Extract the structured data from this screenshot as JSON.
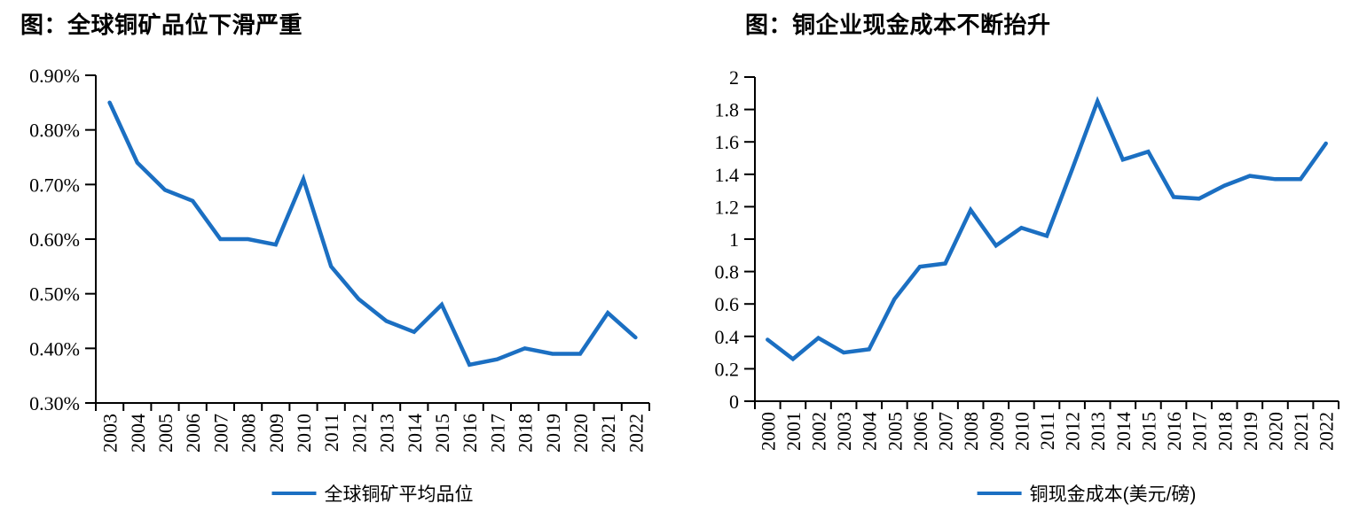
{
  "accent_color": "#1B6FC2",
  "axis_color": "#000000",
  "charts": [
    {
      "title": "图：全球铜矿品位下滑严重",
      "legend_label": "全球铜矿平均品位",
      "chart_data": {
        "type": "line",
        "title": "图：全球铜矿品位下滑严重",
        "x": [
          "2003",
          "2004",
          "2005",
          "2006",
          "2007",
          "2008",
          "2009",
          "2010",
          "2011",
          "2012",
          "2013",
          "2014",
          "2015",
          "2016",
          "2017",
          "2018",
          "2019",
          "2020",
          "2021",
          "2022"
        ],
        "series": [
          {
            "name": "全球铜矿平均品位",
            "values": [
              0.85,
              0.74,
              0.69,
              0.67,
              0.6,
              0.6,
              0.59,
              0.71,
              0.55,
              0.49,
              0.45,
              0.43,
              0.48,
              0.37,
              0.38,
              0.4,
              0.39,
              0.39,
              0.465,
              0.42
            ]
          }
        ],
        "value_unit": "%",
        "ylim": [
          0.3,
          0.9
        ],
        "ytick_labels": [
          "0.30%",
          "0.40%",
          "0.50%",
          "0.60%",
          "0.70%",
          "0.80%",
          "0.90%"
        ],
        "grid": false,
        "legend_position": "bottom"
      }
    },
    {
      "title": "图：铜企业现金成本不断抬升",
      "legend_label": "铜现金成本(美元/磅)",
      "chart_data": {
        "type": "line",
        "title": "图：铜企业现金成本不断抬升",
        "x": [
          "2000",
          "2001",
          "2002",
          "2003",
          "2004",
          "2005",
          "2006",
          "2007",
          "2008",
          "2009",
          "2010",
          "2011",
          "2012",
          "2013",
          "2014",
          "2015",
          "2016",
          "2017",
          "2018",
          "2019",
          "2020",
          "2021",
          "2022"
        ],
        "series": [
          {
            "name": "铜现金成本(美元/磅)",
            "values": [
              0.38,
              0.26,
              0.39,
              0.3,
              0.32,
              0.63,
              0.83,
              0.85,
              1.18,
              0.96,
              1.07,
              1.02,
              1.43,
              1.85,
              1.49,
              1.54,
              1.26,
              1.25,
              1.33,
              1.39,
              1.37,
              1.37,
              1.59
            ]
          }
        ],
        "value_unit": "美元/磅",
        "ylim": [
          0,
          2
        ],
        "ytick_labels": [
          "0",
          "0.2",
          "0.4",
          "0.6",
          "0.8",
          "1",
          "1.2",
          "1.4",
          "1.6",
          "1.8",
          "2"
        ],
        "grid": false,
        "legend_position": "bottom"
      }
    }
  ]
}
